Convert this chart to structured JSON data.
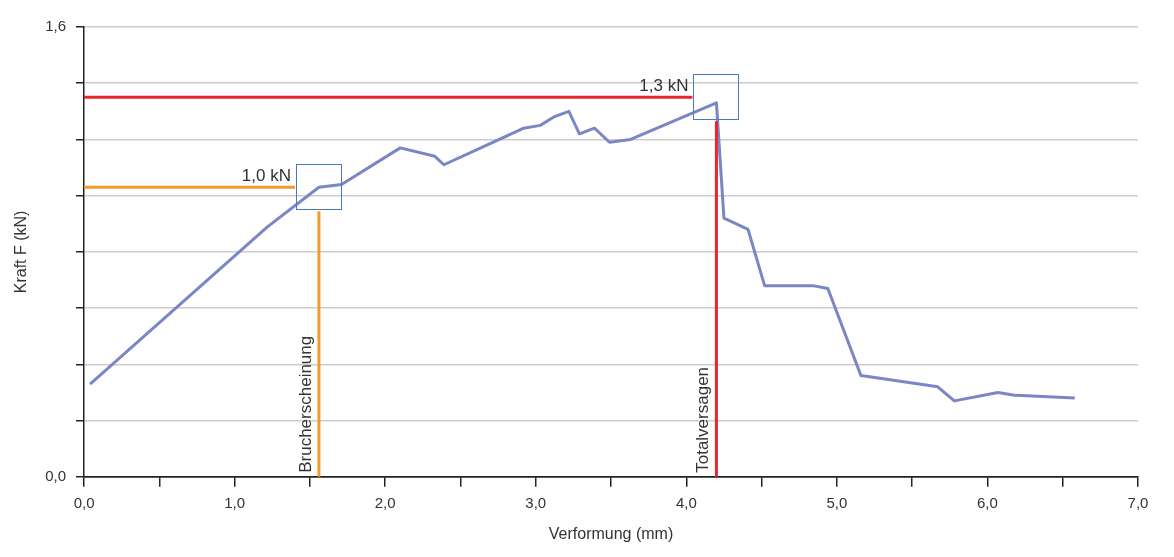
{
  "chart_data": {
    "type": "line",
    "xlabel": "Verformung (mm)",
    "ylabel": "Kraft F (kN)",
    "x": [
      0.04,
      1.22,
      1.56,
      1.71,
      2.1,
      2.33,
      2.39,
      2.92,
      3.03,
      3.12,
      3.22,
      3.29,
      3.39,
      3.49,
      3.63,
      4.2,
      4.25,
      4.41,
      4.52,
      4.84,
      4.94,
      5.16,
      5.67,
      5.78,
      6.07,
      6.18,
      6.58
    ],
    "series": [
      {
        "color": "#7b86c4",
        "values": [
          0.33,
          0.89,
          1.03,
          1.04,
          1.17,
          1.14,
          1.11,
          1.24,
          1.25,
          1.28,
          1.3,
          1.22,
          1.24,
          1.19,
          1.2,
          1.33,
          0.92,
          0.88,
          0.68,
          0.68,
          0.67,
          0.36,
          0.32,
          0.27,
          0.3,
          0.29,
          0.28
        ]
      }
    ],
    "xlim": [
      0,
      7
    ],
    "xticks": [
      {
        "value": 0,
        "label": "0,0"
      },
      {
        "value": 0.5,
        "label": null
      },
      {
        "value": 1,
        "label": "1,0"
      },
      {
        "value": 1.5,
        "label": null
      },
      {
        "value": 2,
        "label": "2,0"
      },
      {
        "value": 2.5,
        "label": null
      },
      {
        "value": 3,
        "label": "3,0"
      },
      {
        "value": 3.5,
        "label": null
      },
      {
        "value": 4,
        "label": "4,0"
      },
      {
        "value": 4.5,
        "label": null
      },
      {
        "value": 5,
        "label": "5,0"
      },
      {
        "value": 5.5,
        "label": null
      },
      {
        "value": 6,
        "label": "6,0"
      },
      {
        "value": 6.5,
        "label": null
      },
      {
        "value": 7,
        "label": "7,0"
      }
    ],
    "ylim": [
      0,
      1.6
    ],
    "yticks": [
      {
        "value": 0,
        "label": "0,0"
      },
      {
        "value": 0.2,
        "label": null
      },
      {
        "value": 0.4,
        "label": null
      },
      {
        "value": 0.6,
        "label": null
      },
      {
        "value": 0.8,
        "label": null
      },
      {
        "value": 1.0,
        "label": null
      },
      {
        "value": 1.2,
        "label": null
      },
      {
        "value": 1.4,
        "label": null
      },
      {
        "value": 1.6,
        "label": "1,6"
      }
    ],
    "grid": "y",
    "marker": "none",
    "line_style": "solid",
    "legend": false,
    "ref_lines": [
      {
        "axis": "y",
        "value": 1.03,
        "label": "1,0 kN",
        "color": "#f39a2a"
      },
      {
        "axis": "x",
        "value": 1.56,
        "label": "Brucherscheinung",
        "color": "#f39a2a"
      },
      {
        "axis": "y",
        "value": 1.35,
        "label": "1,3 kN",
        "color": "#e8262b"
      },
      {
        "axis": "x",
        "value": 4.2,
        "label": "Totalversagen",
        "color": "#e8262b"
      }
    ]
  }
}
